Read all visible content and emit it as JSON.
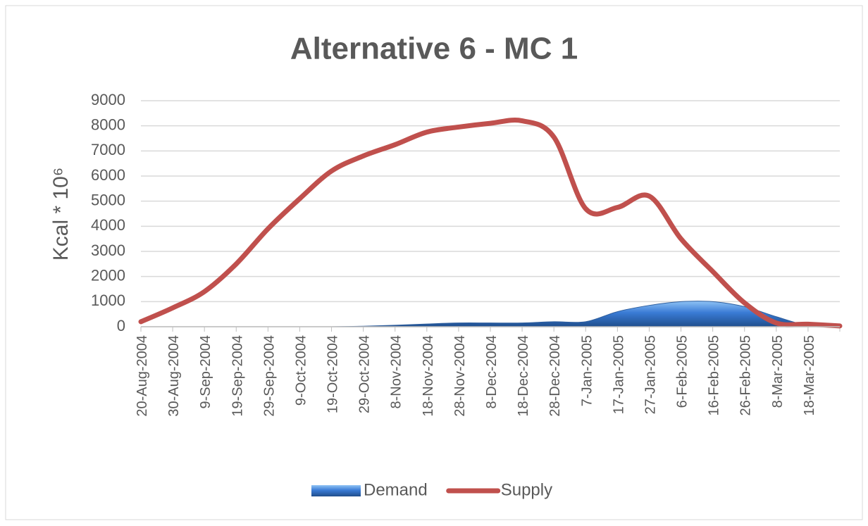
{
  "chart_data": {
    "type": "area_line",
    "title": "Alternative 6 - MC 1",
    "y_label": "Kcal * 10⁶",
    "categories": [
      "20-Aug-2004",
      "30-Aug-2004",
      "9-Sep-2004",
      "19-Sep-2004",
      "29-Sep-2004",
      "9-Oct-2004",
      "19-Oct-2004",
      "29-Oct-2004",
      "8-Nov-2004",
      "18-Nov-2004",
      "28-Nov-2004",
      "8-Dec-2004",
      "18-Dec-2004",
      "28-Dec-2004",
      "7-Jan-2005",
      "17-Jan-2005",
      "27-Jan-2005",
      "6-Feb-2005",
      "16-Feb-2005",
      "26-Feb-2005",
      "8-Mar-2005",
      "18-Mar-2005",
      null
    ],
    "series": [
      {
        "name": "Demand",
        "kind": "area",
        "color": "#3a7bd5",
        "values": [
          0,
          0,
          0,
          0,
          0,
          0,
          0,
          20,
          60,
          110,
          150,
          150,
          150,
          200,
          200,
          600,
          850,
          1000,
          1000,
          800,
          400,
          50,
          0
        ]
      },
      {
        "name": "Supply",
        "kind": "line",
        "color": "#c0504d",
        "values": [
          200,
          750,
          1400,
          2500,
          3900,
          5100,
          6200,
          6800,
          7250,
          7750,
          7950,
          8100,
          8200,
          7550,
          4700,
          4750,
          5200,
          3500,
          2200,
          950,
          150,
          100,
          30
        ]
      }
    ],
    "ylim": [
      0,
      9000
    ],
    "yticks": [
      0,
      1000,
      2000,
      3000,
      4000,
      5000,
      6000,
      7000,
      8000,
      9000
    ],
    "grid": true,
    "legend": "bottom"
  }
}
